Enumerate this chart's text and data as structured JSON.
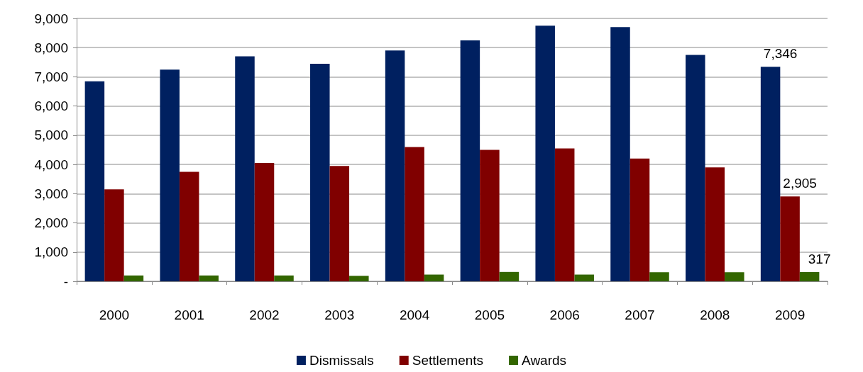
{
  "chart_data": {
    "type": "bar",
    "categories": [
      "2000",
      "2001",
      "2002",
      "2003",
      "2004",
      "2005",
      "2006",
      "2007",
      "2008",
      "2009"
    ],
    "series": [
      {
        "name": "Dismissals",
        "color": "#002060",
        "values": [
          6850,
          7250,
          7700,
          7450,
          7900,
          8250,
          8750,
          8700,
          7750,
          7346
        ],
        "value_labels": [
          null,
          null,
          null,
          null,
          null,
          null,
          null,
          null,
          null,
          "7,346"
        ]
      },
      {
        "name": "Settlements",
        "color": "#800000",
        "values": [
          3150,
          3750,
          4050,
          3950,
          4600,
          4500,
          4550,
          4200,
          3900,
          2905
        ],
        "value_labels": [
          null,
          null,
          null,
          null,
          null,
          null,
          null,
          null,
          null,
          "2,905"
        ]
      },
      {
        "name": "Awards",
        "color": "#336600",
        "values": [
          200,
          200,
          200,
          190,
          230,
          320,
          230,
          310,
          310,
          317
        ],
        "value_labels": [
          null,
          null,
          null,
          null,
          null,
          null,
          null,
          null,
          null,
          "317"
        ]
      }
    ],
    "ylim": [
      0,
      9000
    ],
    "yticks": [
      {
        "value": 0,
        "label": "-"
      },
      {
        "value": 1000,
        "label": "1,000"
      },
      {
        "value": 2000,
        "label": "2,000"
      },
      {
        "value": 3000,
        "label": "3,000"
      },
      {
        "value": 4000,
        "label": "4,000"
      },
      {
        "value": 5000,
        "label": "5,000"
      },
      {
        "value": 6000,
        "label": "6,000"
      },
      {
        "value": 7000,
        "label": "7,000"
      },
      {
        "value": 8000,
        "label": "8,000"
      },
      {
        "value": 9000,
        "label": "9,000"
      }
    ],
    "grid": "y",
    "legend": "bottom"
  }
}
